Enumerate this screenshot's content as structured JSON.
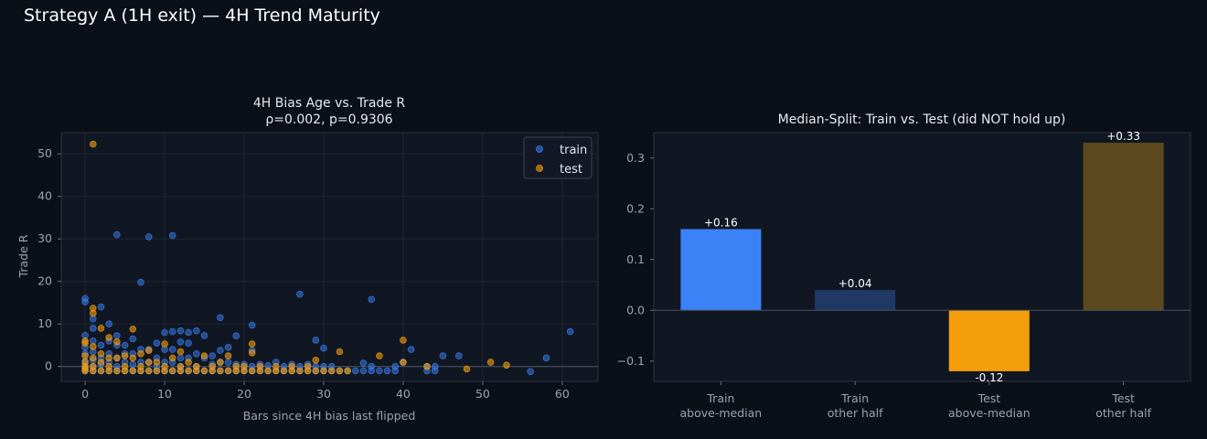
{
  "title": "Strategy A (1H exit) — 4H Trend Maturity",
  "colors": {
    "background": "#0b0f17",
    "train": "#3b82f6",
    "test": "#f59e0b",
    "train_other": "#1e3a64",
    "test_other": "#5c4a1e"
  },
  "chart_data": [
    {
      "type": "scatter",
      "title": "4H Bias Age vs. Trade R",
      "subtitle": "ρ=0.002, p=0.9306",
      "xlabel": "Bars since 4H bias last flipped",
      "ylabel": "Trade R",
      "xlim": [
        -3,
        64.5
      ],
      "ylim": [
        -3.5,
        55
      ],
      "xticks": [
        0,
        10,
        20,
        30,
        40,
        50,
        60
      ],
      "yticks": [
        0,
        10,
        20,
        30,
        40,
        50
      ],
      "grid": true,
      "legend": "top-right",
      "series": [
        {
          "name": "train",
          "points": [
            [
              0,
              16
            ],
            [
              0,
              15.2
            ],
            [
              0,
              7.3
            ],
            [
              0,
              4.5
            ],
            [
              0,
              3
            ],
            [
              0,
              1.2
            ],
            [
              0,
              0.3
            ],
            [
              0,
              -0.5
            ],
            [
              0,
              -1
            ],
            [
              1,
              11.2
            ],
            [
              1,
              9
            ],
            [
              1,
              6
            ],
            [
              1,
              3.5
            ],
            [
              1,
              1.5
            ],
            [
              1,
              0
            ],
            [
              1,
              -1
            ],
            [
              2,
              14
            ],
            [
              2,
              5
            ],
            [
              2,
              2
            ],
            [
              2,
              0.5
            ],
            [
              2,
              -1
            ],
            [
              3,
              10
            ],
            [
              3,
              6
            ],
            [
              3,
              3
            ],
            [
              3,
              1
            ],
            [
              3,
              -1
            ],
            [
              4,
              31
            ],
            [
              4,
              7.2
            ],
            [
              4,
              5
            ],
            [
              4,
              2
            ],
            [
              4,
              0
            ],
            [
              4,
              -1
            ],
            [
              5,
              5
            ],
            [
              5,
              3
            ],
            [
              5,
              1
            ],
            [
              5,
              -1
            ],
            [
              6,
              6.5
            ],
            [
              6,
              3
            ],
            [
              6,
              0.5
            ],
            [
              6,
              -1
            ],
            [
              7,
              19.8
            ],
            [
              7,
              4
            ],
            [
              7,
              1
            ],
            [
              7,
              -1
            ],
            [
              8,
              30.5
            ],
            [
              8,
              4
            ],
            [
              8,
              1
            ],
            [
              8,
              -1
            ],
            [
              9,
              5.5
            ],
            [
              9,
              2
            ],
            [
              9,
              0
            ],
            [
              9,
              -1
            ],
            [
              10,
              8
            ],
            [
              10,
              4
            ],
            [
              10,
              1
            ],
            [
              10,
              -1
            ],
            [
              11,
              30.8
            ],
            [
              11,
              8.2
            ],
            [
              11,
              4
            ],
            [
              11,
              1
            ],
            [
              11,
              -1
            ],
            [
              12,
              8.4
            ],
            [
              12,
              5.8
            ],
            [
              12,
              2
            ],
            [
              12,
              0
            ],
            [
              12,
              -1
            ],
            [
              13,
              8
            ],
            [
              13,
              5.5
            ],
            [
              13,
              2
            ],
            [
              13,
              -1
            ],
            [
              14,
              8.4
            ],
            [
              14,
              3
            ],
            [
              14,
              0
            ],
            [
              14,
              -1
            ],
            [
              15,
              7.3
            ],
            [
              15,
              2
            ],
            [
              15,
              -1
            ],
            [
              16,
              2.5
            ],
            [
              16,
              0.5
            ],
            [
              16,
              -1
            ],
            [
              17,
              11.5
            ],
            [
              17,
              3.8
            ],
            [
              17,
              1
            ],
            [
              17,
              -1
            ],
            [
              18,
              4.5
            ],
            [
              18,
              1
            ],
            [
              18,
              -1
            ],
            [
              19,
              7.2
            ],
            [
              19,
              0.5
            ],
            [
              19,
              -1
            ],
            [
              20,
              0.5
            ],
            [
              20,
              -1
            ],
            [
              21,
              9.7
            ],
            [
              21,
              3.8
            ],
            [
              21,
              0
            ],
            [
              21,
              -1
            ],
            [
              22,
              0.5
            ],
            [
              22,
              -1
            ],
            [
              23,
              0.2
            ],
            [
              23,
              -1
            ],
            [
              24,
              1
            ],
            [
              24,
              -1
            ],
            [
              25,
              0
            ],
            [
              25,
              -1
            ],
            [
              26,
              0.5
            ],
            [
              26,
              -1
            ],
            [
              27,
              17
            ],
            [
              27,
              0
            ],
            [
              27,
              -1
            ],
            [
              28,
              0.5
            ],
            [
              28,
              -1
            ],
            [
              29,
              6.2
            ],
            [
              29,
              0
            ],
            [
              29,
              -1
            ],
            [
              30,
              4.3
            ],
            [
              30,
              0
            ],
            [
              30,
              -1
            ],
            [
              31,
              0
            ],
            [
              31,
              -1
            ],
            [
              32,
              -1
            ],
            [
              33,
              -1
            ],
            [
              34,
              -1
            ],
            [
              35,
              0.8
            ],
            [
              35,
              -1
            ],
            [
              36,
              15.8
            ],
            [
              36,
              0
            ],
            [
              36,
              -1
            ],
            [
              37,
              -1
            ],
            [
              38,
              -1
            ],
            [
              39,
              0
            ],
            [
              39,
              -1
            ],
            [
              40,
              1
            ],
            [
              41,
              4
            ],
            [
              43,
              -1
            ],
            [
              43,
              0
            ],
            [
              44,
              0
            ],
            [
              44,
              -1
            ],
            [
              45,
              2.5
            ],
            [
              47,
              2.5
            ],
            [
              56,
              -1.2
            ],
            [
              58,
              2
            ],
            [
              61,
              8.2
            ]
          ]
        },
        {
          "name": "test",
          "points": [
            [
              0,
              6
            ],
            [
              0,
              5.5
            ],
            [
              0,
              2.5
            ],
            [
              0,
              1
            ],
            [
              0,
              0
            ],
            [
              0,
              -0.5
            ],
            [
              0,
              -1
            ],
            [
              1,
              52.3
            ],
            [
              1,
              13.7
            ],
            [
              1,
              12.5
            ],
            [
              1,
              4.7
            ],
            [
              1,
              2
            ],
            [
              1,
              0
            ],
            [
              1,
              -1
            ],
            [
              2,
              9
            ],
            [
              2,
              3
            ],
            [
              2,
              1
            ],
            [
              2,
              -1
            ],
            [
              3,
              6.8
            ],
            [
              3,
              2
            ],
            [
              3,
              0
            ],
            [
              3,
              -1
            ],
            [
              4,
              5.8
            ],
            [
              4,
              2
            ],
            [
              4,
              -1
            ],
            [
              5,
              2.5
            ],
            [
              5,
              0
            ],
            [
              5,
              -1
            ],
            [
              6,
              8.8
            ],
            [
              6,
              2
            ],
            [
              6,
              -1
            ],
            [
              7,
              3
            ],
            [
              7,
              0
            ],
            [
              7,
              -1
            ],
            [
              8,
              3.8
            ],
            [
              8,
              1
            ],
            [
              8,
              -1
            ],
            [
              9,
              1
            ],
            [
              9,
              -1
            ],
            [
              10,
              5.3
            ],
            [
              10,
              0
            ],
            [
              10,
              -1
            ],
            [
              11,
              2
            ],
            [
              11,
              -1
            ],
            [
              12,
              3.5
            ],
            [
              12,
              0
            ],
            [
              12,
              -1
            ],
            [
              13,
              1
            ],
            [
              13,
              -1
            ],
            [
              14,
              0
            ],
            [
              14,
              -1
            ],
            [
              15,
              2.5
            ],
            [
              15,
              -1
            ],
            [
              16,
              0
            ],
            [
              16,
              -1
            ],
            [
              17,
              1
            ],
            [
              17,
              -1
            ],
            [
              18,
              2.5
            ],
            [
              18,
              -1
            ],
            [
              19,
              0
            ],
            [
              19,
              -1
            ],
            [
              20,
              0
            ],
            [
              20,
              -1
            ],
            [
              21,
              5.3
            ],
            [
              21,
              3.2
            ],
            [
              21,
              -1
            ],
            [
              22,
              0
            ],
            [
              22,
              -1
            ],
            [
              23,
              -1
            ],
            [
              24,
              0
            ],
            [
              24,
              -1
            ],
            [
              25,
              -1
            ],
            [
              26,
              0
            ],
            [
              26,
              -1
            ],
            [
              27,
              -1
            ],
            [
              28,
              0
            ],
            [
              28,
              -1
            ],
            [
              29,
              1.5
            ],
            [
              29,
              -1
            ],
            [
              30,
              -1
            ],
            [
              31,
              -1
            ],
            [
              32,
              3.5
            ],
            [
              32,
              -1
            ],
            [
              33,
              -1
            ],
            [
              37,
              2.5
            ],
            [
              40,
              6.2
            ],
            [
              40,
              1
            ],
            [
              43,
              0
            ],
            [
              48,
              -0.6
            ],
            [
              51,
              1
            ],
            [
              53,
              0.3
            ]
          ]
        }
      ]
    },
    {
      "type": "bar",
      "title": "Median-Split: Train vs. Test (did NOT hold up)",
      "categories": [
        "Train\nabove-median",
        "Train\nother half",
        "Test\nabove-median",
        "Test\nother half"
      ],
      "values": [
        0.16,
        0.04,
        -0.12,
        0.33
      ],
      "value_labels": [
        "+0.16",
        "+0.04",
        "-0.12",
        "+0.33"
      ],
      "bar_colors": [
        "#3b82f6",
        "#1e3a64",
        "#f59e0b",
        "#5c4a1e"
      ],
      "ylim": [
        -0.14,
        0.35
      ],
      "yticks": [
        -0.1,
        0.0,
        0.1,
        0.2,
        0.3
      ],
      "ytick_labels": [
        "−0.1",
        "0.0",
        "0.1",
        "0.2",
        "0.3"
      ],
      "xlabel": "",
      "ylabel": "",
      "grid": false,
      "zero_line": true
    }
  ]
}
